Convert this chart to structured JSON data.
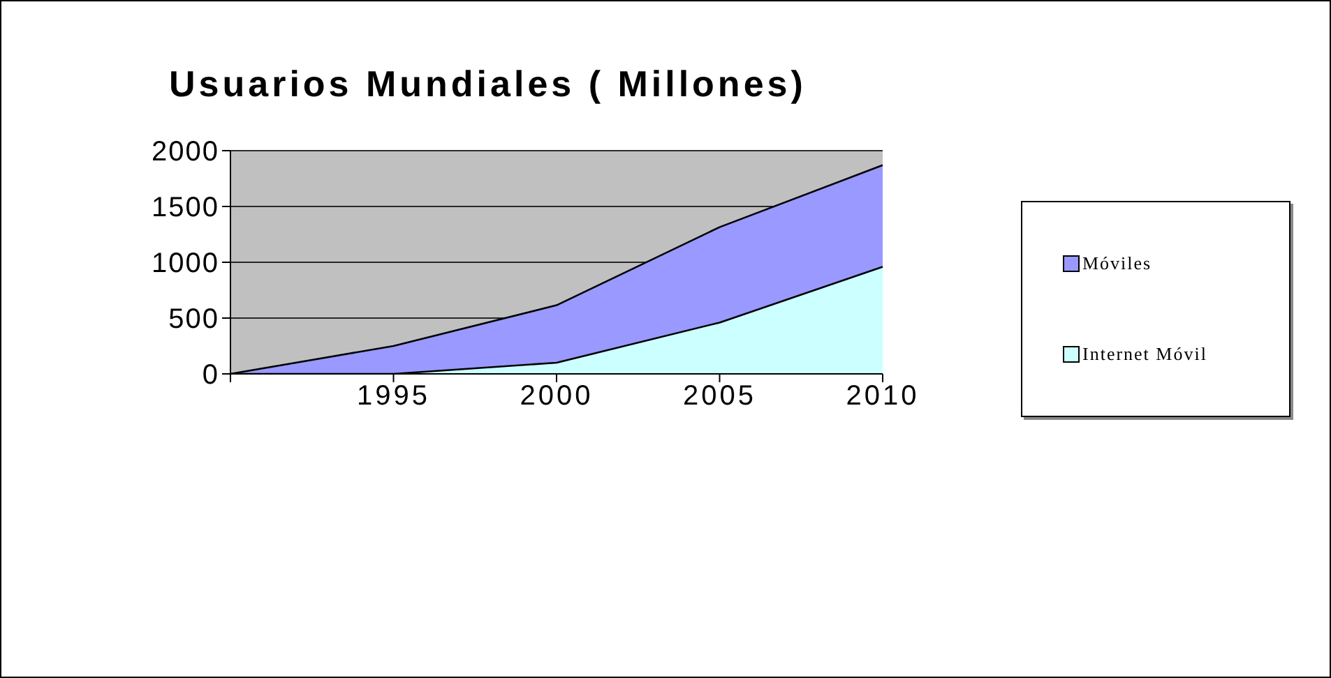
{
  "chart_data": {
    "type": "area",
    "title": "Usuarios Mundiales ( Millones)",
    "categories": [
      null,
      "1995",
      "2000",
      "2005",
      "2010"
    ],
    "series": [
      {
        "name": "Móviles",
        "color": "#9999ff",
        "values": [
          0,
          250,
          615,
          1315,
          1870
        ]
      },
      {
        "name": "Internet Móvil",
        "color": "#ccffff",
        "values": [
          0,
          0,
          100,
          460,
          960
        ]
      }
    ],
    "ylim": [
      0,
      2000
    ],
    "yticks": [
      0,
      500,
      1000,
      1500,
      2000
    ],
    "grid": "y",
    "legend": "right"
  }
}
